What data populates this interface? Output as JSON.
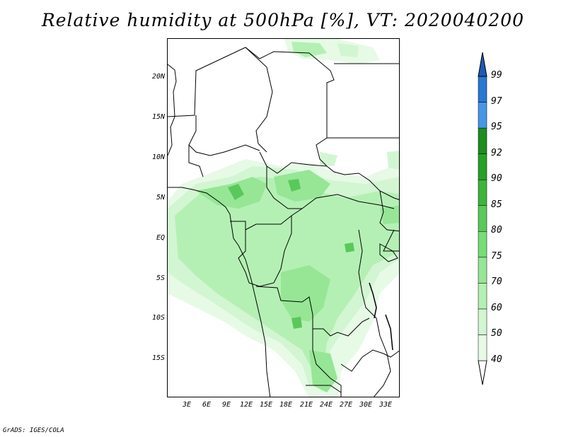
{
  "title": "Relative humidity at 500hPa [%], VT: 2020040200",
  "variable": "Relative humidity",
  "level": "500hPa",
  "units": "%",
  "valid_time": "2020040200",
  "latitude_labels": [
    "20N",
    "15N",
    "10N",
    "5N",
    "EQ",
    "5S",
    "10S",
    "15S"
  ],
  "longitude_labels": [
    "3E",
    "6E",
    "9E",
    "12E",
    "15E",
    "18E",
    "21E",
    "24E",
    "27E",
    "30E",
    "33E"
  ],
  "colorbar": {
    "levels": [
      "40",
      "50",
      "60",
      "70",
      "75",
      "80",
      "85",
      "90",
      "92",
      "95",
      "97",
      "99"
    ],
    "colors": [
      "#ffffff",
      "#e6fae6",
      "#d2f5d2",
      "#b4f0b4",
      "#96e696",
      "#78dc78",
      "#5ac85a",
      "#3cb43c",
      "#28a028",
      "#1e8c1e",
      "#4696e6",
      "#2878d2",
      "#1e5ab4"
    ]
  },
  "credit": "GrADS: IGES/COLA"
}
